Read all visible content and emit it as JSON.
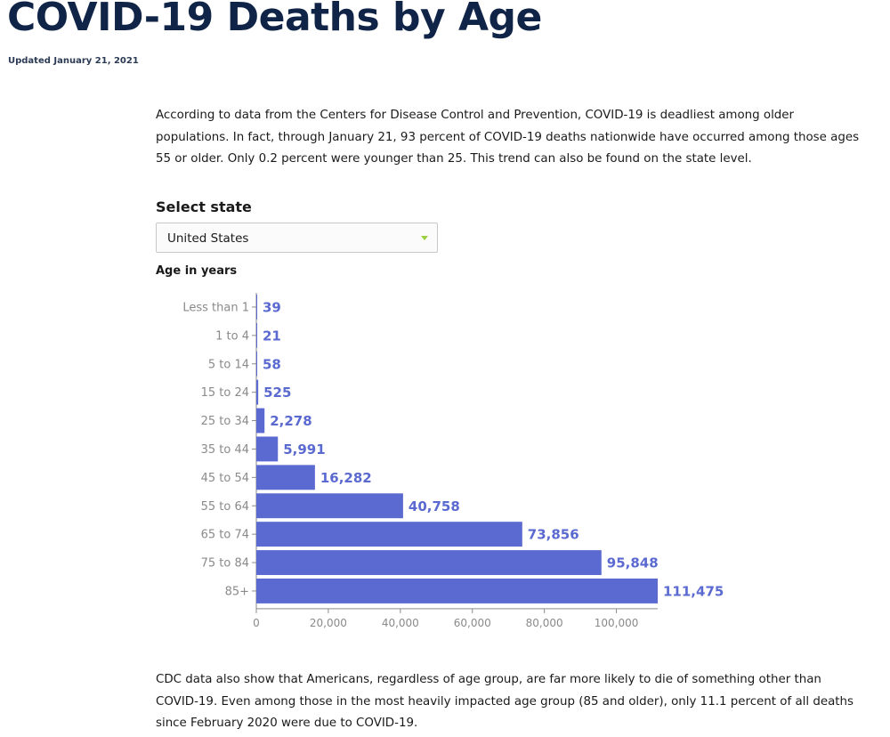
{
  "header": {
    "title": "COVID-19 Deaths by Age",
    "updated": "Updated January 21, 2021"
  },
  "intro": "According to data from the Centers for Disease Control and Prevention, COVID-19 is deadliest among older populations. In fact, through January 21, 93 percent of COVID-19 deaths nationwide have occurred among those ages 55 or older. Only 0.2 percent were younger than 25. This trend can also be found on the state level.",
  "state_select": {
    "label": "Select state",
    "value": "United States"
  },
  "chart_data": {
    "type": "bar",
    "orientation": "horizontal",
    "title": "",
    "ylabel": "Age in years",
    "xlabel": "",
    "categories": [
      "Less than 1",
      "1 to 4",
      "5 to 14",
      "15 to 24",
      "25 to 34",
      "35 to 44",
      "45 to 54",
      "55 to 64",
      "65 to 74",
      "75 to 84",
      "85+"
    ],
    "values": [
      39,
      21,
      58,
      525,
      2278,
      5991,
      16282,
      40758,
      73856,
      95848,
      111475
    ],
    "value_labels": [
      "39",
      "21",
      "58",
      "525",
      "2,278",
      "5,991",
      "16,282",
      "40,758",
      "73,856",
      "95,848",
      "111,475"
    ],
    "xlim": [
      0,
      111475
    ],
    "x_ticks": [
      0,
      20000,
      40000,
      60000,
      80000,
      100000
    ],
    "x_tick_labels": [
      "0",
      "20,000",
      "40,000",
      "60,000",
      "80,000",
      "100,000"
    ],
    "grid": false,
    "bar_color": "#5b6ad0"
  },
  "outro": "CDC data also show that Americans, regardless of age group, are far more likely to die of something other than COVID-19. Even among those in the most heavily impacted age group (85 and older), only 11.1 percent of all deaths since February 2020 were due to COVID-19."
}
